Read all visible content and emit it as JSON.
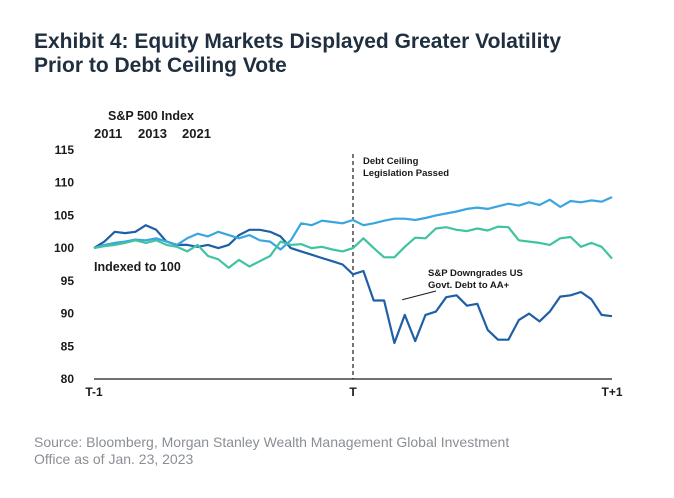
{
  "title_lines": [
    "Exhibit 4: Equity Markets Displayed Greater Volatility",
    "Prior to Debt Ceiling Vote"
  ],
  "source_lines": [
    "Source: Bloomberg, Morgan Stanley Wealth Management Global Investment",
    "Office as of Jan. 23, 2023"
  ],
  "chart_data": {
    "type": "line",
    "ylabel": "S&P 500 Index",
    "yticks": [
      115,
      110,
      105,
      100,
      95,
      90,
      85,
      80
    ],
    "ylim": [
      80,
      115
    ],
    "xlim": [
      -1,
      1
    ],
    "xticks": [
      {
        "value": -1,
        "label": "T-1"
      },
      {
        "value": 0,
        "label": "T"
      },
      {
        "value": 1,
        "label": "T+1"
      }
    ],
    "grid": false,
    "legend_position": "top-left",
    "inline_label": "Indexed to 100",
    "annotations": [
      {
        "id": "debt-ceiling",
        "x": 0,
        "lines": [
          "Debt Ceiling",
          "Legislation Passed"
        ]
      },
      {
        "id": "downgrade",
        "x": 0.19,
        "y": 91.5,
        "lines": [
          "S&P Downgrades US",
          "Govt. Debt to AA+"
        ]
      }
    ],
    "series": [
      {
        "name": "2011",
        "color": "#1f5fa8",
        "x": [
          -1.0,
          -0.96,
          -0.92,
          -0.88,
          -0.84,
          -0.8,
          -0.76,
          -0.72,
          -0.68,
          -0.64,
          -0.6,
          -0.56,
          -0.52,
          -0.48,
          -0.44,
          -0.4,
          -0.36,
          -0.32,
          -0.28,
          -0.24,
          -0.2,
          -0.16,
          -0.12,
          -0.08,
          -0.04,
          0.0,
          0.04,
          0.08,
          0.12,
          0.16,
          0.2,
          0.24,
          0.28,
          0.32,
          0.36,
          0.4,
          0.44,
          0.48,
          0.52,
          0.56,
          0.6,
          0.64,
          0.68,
          0.72,
          0.76,
          0.8,
          0.84,
          0.88,
          0.92,
          0.96,
          1.0
        ],
        "y": [
          100,
          101,
          102.5,
          102.3,
          102.5,
          103.5,
          102.8,
          101,
          100.5,
          100.5,
          100.2,
          100.5,
          100,
          100.5,
          102,
          102.8,
          102.8,
          102.5,
          101.8,
          100,
          99.5,
          99,
          98.5,
          98,
          97.5,
          96,
          96.5,
          92,
          92,
          85.5,
          89.8,
          85.8,
          89.8,
          90.3,
          92.5,
          92.8,
          91.2,
          91.5,
          87.5,
          86,
          86,
          89,
          90,
          88.8,
          90.3,
          92.6,
          92.8,
          93.3,
          92.2,
          89.8,
          89.6
        ]
      },
      {
        "name": "2013",
        "color": "#3aa5e0",
        "x": [
          -1.0,
          -0.96,
          -0.92,
          -0.88,
          -0.84,
          -0.8,
          -0.76,
          -0.72,
          -0.68,
          -0.64,
          -0.6,
          -0.56,
          -0.52,
          -0.48,
          -0.44,
          -0.4,
          -0.36,
          -0.32,
          -0.28,
          -0.24,
          -0.2,
          -0.16,
          -0.12,
          -0.08,
          -0.04,
          0.0,
          0.04,
          0.08,
          0.12,
          0.16,
          0.2,
          0.24,
          0.28,
          0.32,
          0.36,
          0.4,
          0.44,
          0.48,
          0.52,
          0.56,
          0.6,
          0.64,
          0.68,
          0.72,
          0.76,
          0.8,
          0.84,
          0.88,
          0.92,
          0.96,
          1.0
        ],
        "y": [
          100,
          100.5,
          100.8,
          101,
          101.3,
          101.2,
          101.5,
          101,
          100.5,
          101.5,
          102.2,
          101.8,
          102.5,
          102,
          101.5,
          102,
          101.2,
          101,
          99.8,
          101.2,
          103.8,
          103.5,
          104.2,
          104,
          103.8,
          104.3,
          103.5,
          103.8,
          104.2,
          104.5,
          104.5,
          104.3,
          104.6,
          105,
          105.3,
          105.6,
          106,
          106.2,
          106,
          106.4,
          106.8,
          106.5,
          107,
          106.6,
          107.4,
          106.3,
          107.2,
          107,
          107.3,
          107.1,
          107.8
        ]
      },
      {
        "name": "2021",
        "color": "#3fc3a0",
        "x": [
          -1.0,
          -0.96,
          -0.92,
          -0.88,
          -0.84,
          -0.8,
          -0.76,
          -0.72,
          -0.68,
          -0.64,
          -0.6,
          -0.56,
          -0.52,
          -0.48,
          -0.44,
          -0.4,
          -0.36,
          -0.32,
          -0.28,
          -0.24,
          -0.2,
          -0.16,
          -0.12,
          -0.08,
          -0.04,
          0.0,
          0.04,
          0.08,
          0.12,
          0.16,
          0.2,
          0.24,
          0.28,
          0.32,
          0.36,
          0.4,
          0.44,
          0.48,
          0.52,
          0.56,
          0.6,
          0.64,
          0.68,
          0.72,
          0.76,
          0.8,
          0.84,
          0.88,
          0.92,
          0.96,
          1.0
        ],
        "y": [
          100,
          100.3,
          100.5,
          100.8,
          101.2,
          100.8,
          101.2,
          100.5,
          100.2,
          99.5,
          100.5,
          98.8,
          98.3,
          97,
          98.2,
          97.2,
          98,
          98.8,
          101,
          100.5,
          100.6,
          100,
          100.2,
          99.8,
          99.5,
          100,
          101.5,
          100,
          98.6,
          98.6,
          100.2,
          101.6,
          101.5,
          103,
          103.2,
          102.8,
          102.6,
          103,
          102.7,
          103.3,
          103.2,
          101.2,
          101,
          100.8,
          100.5,
          101.5,
          101.7,
          100.2,
          100.8,
          100.2,
          98.4
        ]
      }
    ]
  }
}
